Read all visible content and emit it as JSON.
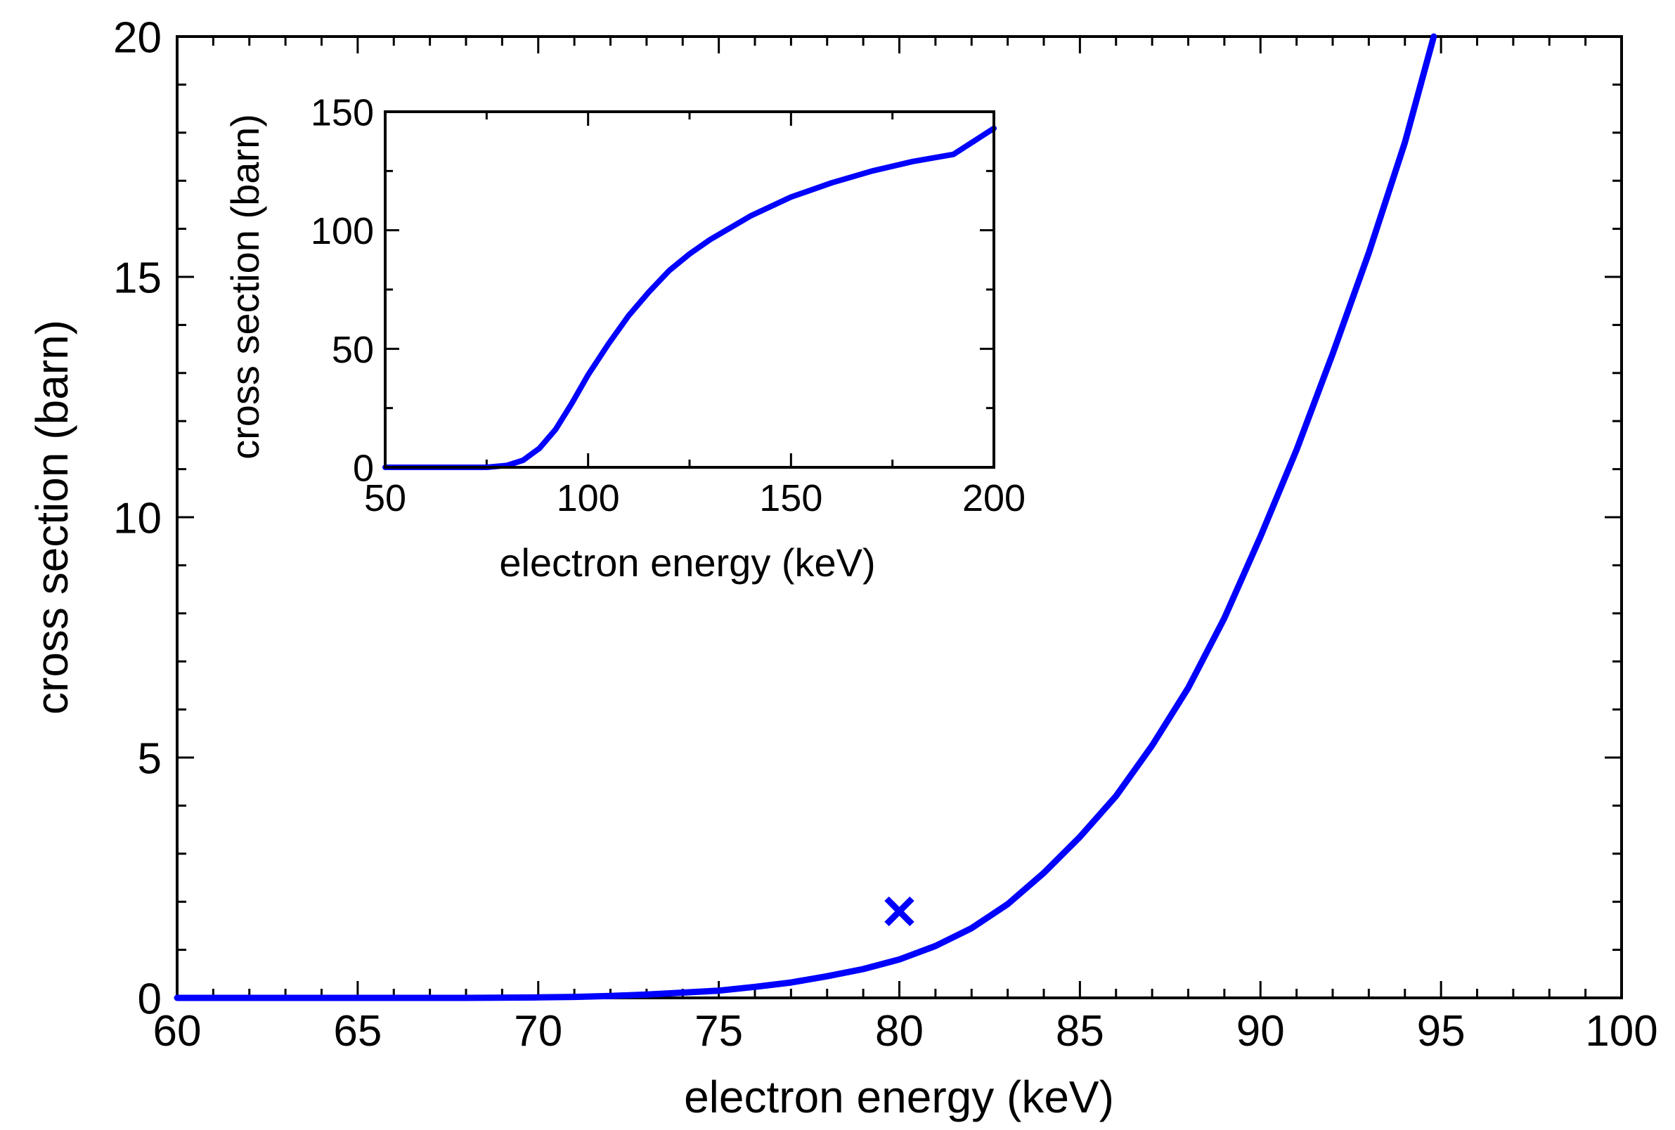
{
  "chart_data": [
    {
      "id": "main",
      "type": "line",
      "title": "",
      "xlabel": "electron energy (keV)",
      "ylabel": "cross section (barn)",
      "xlim": [
        60,
        100
      ],
      "ylim": [
        0,
        20
      ],
      "xticks": [
        60,
        65,
        70,
        75,
        80,
        85,
        90,
        95,
        100
      ],
      "xtick_labels": [
        "60",
        "65",
        "70",
        "75",
        "80",
        "85",
        "90",
        "95",
        "100"
      ],
      "yticks": [
        0,
        5,
        10,
        15,
        20
      ],
      "ytick_labels": [
        "0",
        "5",
        "10",
        "15",
        "20"
      ],
      "grid": false,
      "color": "#0000ff",
      "series": [
        {
          "name": "cross section",
          "x": [
            60,
            62,
            64,
            66,
            68,
            70,
            71,
            72,
            73,
            74,
            75,
            76,
            77,
            78,
            79,
            80,
            81,
            82,
            83,
            84,
            85,
            86,
            87,
            88,
            89,
            90,
            91,
            92,
            93,
            94,
            94.8
          ],
          "y": [
            0,
            0,
            0,
            0,
            0,
            0.01,
            0.02,
            0.04,
            0.07,
            0.11,
            0.15,
            0.23,
            0.32,
            0.45,
            0.6,
            0.8,
            1.08,
            1.45,
            1.95,
            2.6,
            3.35,
            4.2,
            5.25,
            6.45,
            7.9,
            9.6,
            11.4,
            13.4,
            15.5,
            17.8,
            20
          ]
        }
      ],
      "markers": [
        {
          "name": "measured point",
          "x": 80,
          "y": 1.8,
          "symbol": "x"
        }
      ]
    },
    {
      "id": "inset",
      "type": "line",
      "title": "",
      "xlabel": "electron energy (keV)",
      "ylabel": "cross section (barn)",
      "xlim": [
        50,
        200
      ],
      "ylim": [
        0,
        150
      ],
      "xticks": [
        50,
        100,
        150,
        200
      ],
      "xtick_labels": [
        "50",
        "100",
        "150",
        "200"
      ],
      "yticks": [
        0,
        50,
        100,
        150
      ],
      "ytick_labels": [
        "0",
        "50",
        "100",
        "150"
      ],
      "grid": false,
      "color": "#0000ff",
      "series": [
        {
          "name": "cross section",
          "x": [
            50,
            60,
            70,
            75,
            80,
            84,
            88,
            92,
            96,
            100,
            105,
            110,
            115,
            120,
            125,
            130,
            140,
            150,
            160,
            170,
            180,
            190,
            200
          ],
          "y": [
            0,
            0,
            0,
            0,
            0.8,
            3,
            8,
            16,
            27,
            39,
            52,
            64,
            74,
            83,
            90,
            96,
            106,
            114,
            120,
            125,
            129,
            132,
            143
          ]
        }
      ]
    }
  ]
}
